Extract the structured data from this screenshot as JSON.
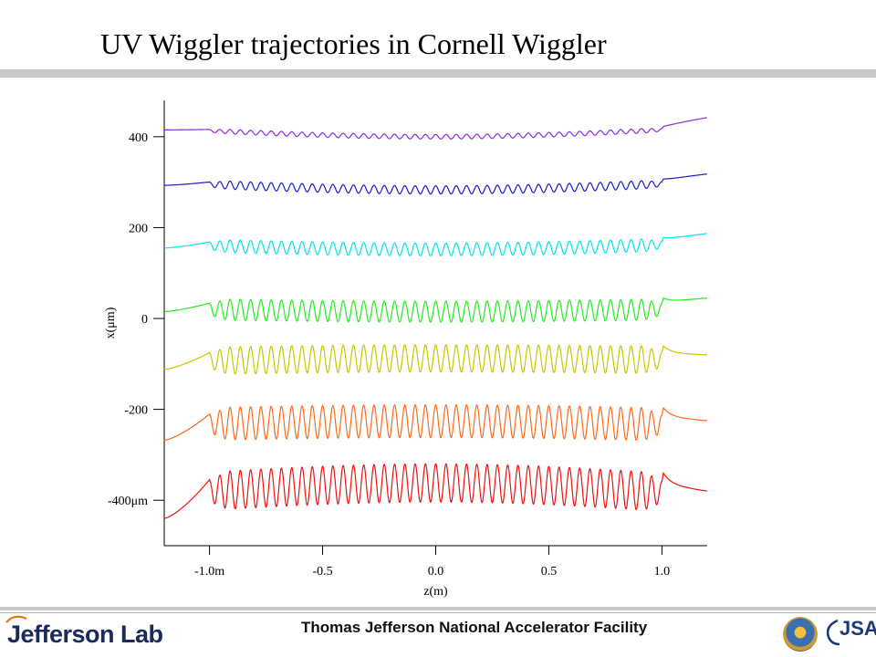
{
  "header": {
    "title": "UV Wiggler trajectories in Cornell Wiggler"
  },
  "footer": {
    "logo_text": "Jefferson Lab",
    "facility_text": "Thomas Jefferson National Accelerator Facility",
    "partner_logo_text": "JSA",
    "seal_icon": "doe-seal-icon"
  },
  "chart_data": {
    "type": "line",
    "title": "",
    "xlabel": "z(m)",
    "ylabel": "x(μm)",
    "xlim": [
      -1.2,
      1.2
    ],
    "ylim": [
      -500,
      480
    ],
    "x_ticks": [
      -1.0,
      -0.5,
      0.0,
      0.5,
      1.0
    ],
    "x_tick_labels": [
      "-1.0m",
      "-0.5",
      "0.0",
      "0.5",
      "1.0"
    ],
    "y_ticks": [
      400,
      200,
      0,
      -200,
      -400
    ],
    "y_tick_labels": [
      "400",
      "200",
      "0",
      "-200",
      "-400μm"
    ],
    "grid": false,
    "legend": "none",
    "wiggler_start": -1.0,
    "wiggler_end": 1.0,
    "series": [
      {
        "color": "#8a2be2",
        "x_in": -1.2,
        "y_in": 415,
        "x_out": 1.2,
        "y_out": 442,
        "mean_start": 413,
        "mean_mid": 400,
        "mean_end": 415,
        "amplitude": 5,
        "periods": 44
      },
      {
        "color": "#1a1acd",
        "x_in": -1.2,
        "y_in": 293,
        "x_out": 1.2,
        "y_out": 318,
        "mean_start": 295,
        "mean_mid": 283,
        "mean_end": 296,
        "amplitude": 9,
        "periods": 44
      },
      {
        "color": "#00e5ee",
        "x_in": -1.2,
        "y_in": 155,
        "x_out": 1.2,
        "y_out": 187,
        "mean_start": 160,
        "mean_mid": 152,
        "mean_end": 162,
        "amplitude": 14,
        "periods": 44
      },
      {
        "color": "#22ee22",
        "x_in": -1.2,
        "y_in": 15,
        "x_out": 1.2,
        "y_out": 45,
        "mean_start": 20,
        "mean_mid": 15,
        "mean_end": 20,
        "amplitude": 23,
        "periods": 44
      },
      {
        "color": "#c8c800",
        "x_in": -1.2,
        "y_in": -112,
        "x_out": 1.2,
        "y_out": -80,
        "mean_start": -93,
        "mean_mid": -88,
        "mean_end": -91,
        "amplitude": 30,
        "periods": 44
      },
      {
        "color": "#ff6a1a",
        "x_in": -1.2,
        "y_in": -268,
        "x_out": 1.2,
        "y_out": -225,
        "mean_start": -232,
        "mean_mid": -226,
        "mean_end": -233,
        "amplitude": 36,
        "periods": 44
      },
      {
        "color": "#ee1111",
        "x_in": -1.2,
        "y_in": -440,
        "x_out": 1.2,
        "y_out": -380,
        "mean_start": -380,
        "mean_mid": -362,
        "mean_end": -382,
        "amplitude": 42,
        "periods": 44
      }
    ]
  }
}
